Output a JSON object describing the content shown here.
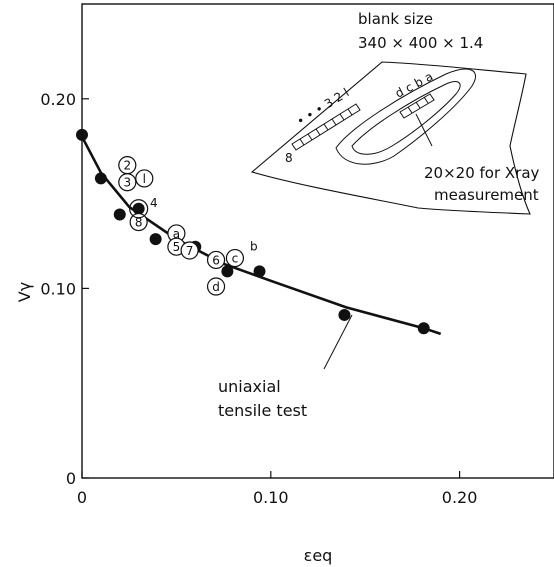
{
  "chart_data": {
    "type": "scatter",
    "xlabel": "εeq",
    "ylabel": "Vγ",
    "xlim": [
      0,
      0.25
    ],
    "ylim": [
      0,
      0.25
    ],
    "x_ticks": [
      {
        "value": 0,
        "label": "0"
      },
      {
        "value": 0.1,
        "label": "0.10"
      },
      {
        "value": 0.2,
        "label": "0.20"
      }
    ],
    "y_ticks": [
      {
        "value": 0,
        "label": "0"
      },
      {
        "value": 0.1,
        "label": "0.10"
      },
      {
        "value": 0.2,
        "label": "0.20"
      }
    ],
    "grid": false,
    "series": [
      {
        "name": "uniaxial tensile test",
        "marker": "filled-circle",
        "points": [
          {
            "x": 0.0,
            "y": 0.181
          },
          {
            "x": 0.01,
            "y": 0.158
          },
          {
            "x": 0.02,
            "y": 0.139
          },
          {
            "x": 0.03,
            "y": 0.142
          },
          {
            "x": 0.039,
            "y": 0.126
          },
          {
            "x": 0.049,
            "y": 0.13
          },
          {
            "x": 0.06,
            "y": 0.122
          },
          {
            "x": 0.077,
            "y": 0.109
          },
          {
            "x": 0.094,
            "y": 0.109
          },
          {
            "x": 0.139,
            "y": 0.086
          },
          {
            "x": 0.181,
            "y": 0.079
          }
        ],
        "fit_curve": [
          {
            "x": 0.0,
            "y": 0.18
          },
          {
            "x": 0.01,
            "y": 0.161
          },
          {
            "x": 0.025,
            "y": 0.143
          },
          {
            "x": 0.05,
            "y": 0.126
          },
          {
            "x": 0.075,
            "y": 0.113
          },
          {
            "x": 0.1,
            "y": 0.104
          },
          {
            "x": 0.14,
            "y": 0.09
          },
          {
            "x": 0.181,
            "y": 0.079
          },
          {
            "x": 0.19,
            "y": 0.076
          }
        ]
      },
      {
        "name": "",
        "marker": "open-circle-labeled",
        "points": [
          {
            "x": 0.024,
            "y": 0.165,
            "label": "2"
          },
          {
            "x": 0.024,
            "y": 0.156,
            "label": "3"
          },
          {
            "x": 0.033,
            "y": 0.158,
            "label": "l"
          },
          {
            "x": 0.03,
            "y": 0.135,
            "label": "8"
          },
          {
            "x": 0.05,
            "y": 0.129,
            "label": "a"
          },
          {
            "x": 0.05,
            "y": 0.122,
            "label": "5"
          },
          {
            "x": 0.057,
            "y": 0.12,
            "label": "7"
          },
          {
            "x": 0.071,
            "y": 0.115,
            "label": "6"
          },
          {
            "x": 0.081,
            "y": 0.116,
            "label": "c"
          },
          {
            "x": 0.071,
            "y": 0.101,
            "label": "d"
          }
        ]
      }
    ],
    "annotations": [
      {
        "text": "4",
        "x": 0.036,
        "y": 0.143
      },
      {
        "text": "b",
        "x": 0.089,
        "y": 0.12
      }
    ],
    "curve_label": {
      "line1": "uniaxial",
      "line2": "tensile test",
      "target_x": 0.125,
      "target_y": 0.095
    },
    "inset": {
      "title_line1": "blank size",
      "title_line2": "340 × 400 × 1.4",
      "strip_numbers": "• • • 3 2 l",
      "strip_start": "8",
      "letters": "d c b a",
      "callout_line1": "20×20 for Xray",
      "callout_line2": "measurement"
    }
  }
}
